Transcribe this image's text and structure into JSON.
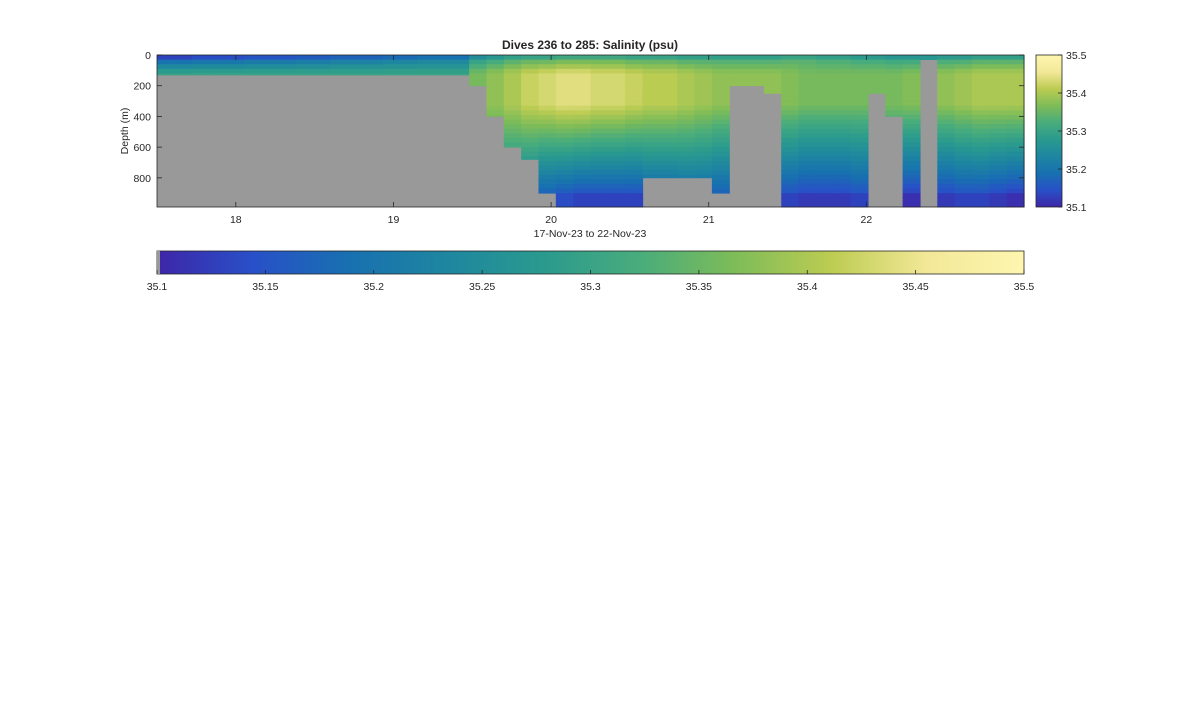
{
  "chart_data": {
    "type": "heatmap",
    "title": "Dives 236 to 285: Salinity (psu)",
    "xlabel": "17-Nov-23 to 22-Nov-23",
    "ylabel": "Depth (m)",
    "x_ticks": [
      "18",
      "19",
      "20",
      "21",
      "22"
    ],
    "x_tick_values": [
      18,
      19,
      20,
      21,
      22
    ],
    "xlim": [
      17.5,
      23.0
    ],
    "y_ticks": [
      "0",
      "200",
      "400",
      "600",
      "800"
    ],
    "y_tick_values": [
      0,
      200,
      400,
      600,
      800
    ],
    "ylim": [
      0,
      990
    ],
    "y_reversed": true,
    "no_data_color": "#999999",
    "colorbar": {
      "min": 35.1,
      "max": 35.5,
      "ticks": [
        "35.1",
        "35.2",
        "35.3",
        "35.4",
        "35.5"
      ],
      "tick_values": [
        35.1,
        35.2,
        35.3,
        35.4,
        35.5
      ],
      "colormap": [
        "#3e26a8",
        "#2850c8",
        "#1870b0",
        "#1e86a0",
        "#2a9a8e",
        "#48ac7c",
        "#7ebc58",
        "#bccc52",
        "#f3e898",
        "#fef6b0"
      ]
    },
    "colorbar_horizontal": {
      "ticks": [
        "35.1",
        "35.15",
        "35.2",
        "35.25",
        "35.3",
        "35.35",
        "35.4",
        "35.45",
        "35.5"
      ],
      "tick_values": [
        35.1,
        35.15,
        35.2,
        35.25,
        35.3,
        35.35,
        35.4,
        35.45,
        35.5
      ]
    },
    "profiles": {
      "count": 50,
      "max_depth": [
        130,
        130,
        130,
        130,
        130,
        130,
        130,
        130,
        130,
        130,
        130,
        130,
        130,
        130,
        130,
        130,
        130,
        130,
        200,
        400,
        600,
        680,
        900,
        990,
        990,
        990,
        990,
        990,
        800,
        800,
        800,
        800,
        900,
        200,
        200,
        250,
        990,
        990,
        990,
        990,
        990,
        250,
        400,
        990,
        30,
        990,
        990,
        990,
        990,
        990
      ],
      "surface_salinity": [
        35.16,
        35.16,
        35.17,
        35.17,
        35.17,
        35.18,
        35.18,
        35.18,
        35.19,
        35.19,
        35.2,
        35.2,
        35.2,
        35.21,
        35.21,
        35.22,
        35.22,
        35.22,
        35.28,
        35.3,
        35.32,
        35.33,
        35.33,
        35.34,
        35.34,
        35.34,
        35.34,
        35.33,
        35.33,
        35.33,
        35.32,
        35.32,
        35.32,
        35.32,
        35.32,
        35.32,
        35.33,
        35.33,
        35.32,
        35.32,
        35.31,
        35.31,
        35.3,
        35.3,
        35.3,
        35.31,
        35.31,
        35.32,
        35.32,
        35.32
      ],
      "core_salinity": [
        35.3,
        35.3,
        35.3,
        35.3,
        35.3,
        35.3,
        35.3,
        35.3,
        35.3,
        35.3,
        35.3,
        35.3,
        35.3,
        35.3,
        35.3,
        35.3,
        35.3,
        35.3,
        35.36,
        35.38,
        35.4,
        35.42,
        35.43,
        35.44,
        35.44,
        35.43,
        35.43,
        35.42,
        35.41,
        35.41,
        35.4,
        35.39,
        35.38,
        35.38,
        35.38,
        35.38,
        35.37,
        35.36,
        35.36,
        35.36,
        35.36,
        35.36,
        35.36,
        35.37,
        35.37,
        35.38,
        35.39,
        35.4,
        35.4,
        35.4
      ],
      "deep_salinity": [
        35.3,
        35.3,
        35.3,
        35.3,
        35.3,
        35.3,
        35.3,
        35.3,
        35.3,
        35.3,
        35.3,
        35.3,
        35.3,
        35.3,
        35.3,
        35.3,
        35.3,
        35.3,
        35.3,
        35.26,
        35.22,
        35.2,
        35.17,
        35.16,
        35.15,
        35.15,
        35.15,
        35.15,
        35.17,
        35.17,
        35.18,
        35.18,
        35.17,
        35.2,
        35.2,
        35.2,
        35.15,
        35.14,
        35.14,
        35.14,
        35.15,
        35.2,
        35.2,
        35.13,
        35.3,
        35.14,
        35.15,
        35.15,
        35.14,
        35.13
      ]
    }
  }
}
